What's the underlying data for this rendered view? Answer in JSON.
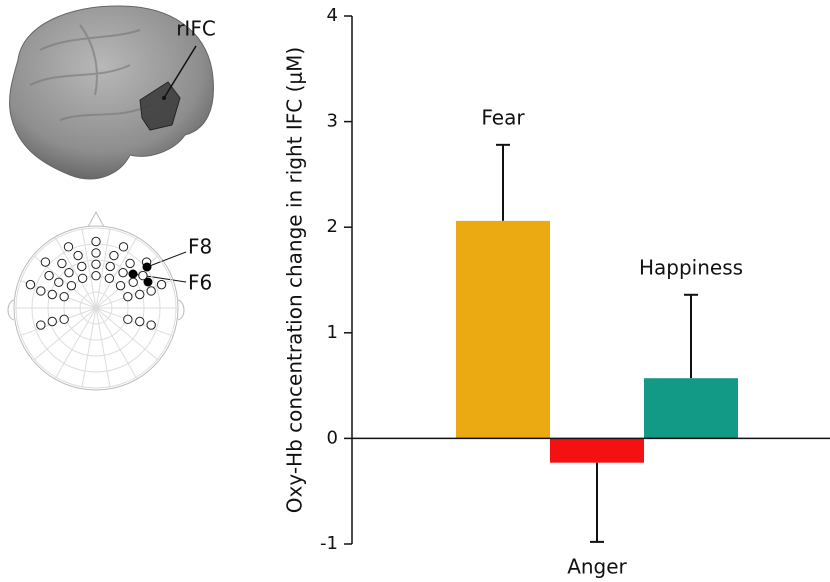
{
  "chart_data": {
    "type": "bar",
    "y_label": "Oxy-Hb concentration change in right IFC (μM)",
    "categories": [
      "Fear",
      "Anger",
      "Happiness"
    ],
    "values": [
      2.06,
      -0.23,
      0.57
    ],
    "errors": [
      0.72,
      0.75,
      0.79
    ],
    "colors": [
      "#ecaa12",
      "#f51111",
      "#139a87"
    ],
    "ylim": [
      -1,
      4
    ],
    "yticks": [
      -1,
      0,
      1,
      2,
      3,
      4
    ]
  },
  "illustration": {
    "brain_label": "rIFC",
    "electrode_labels": [
      "F8",
      "F6"
    ]
  }
}
